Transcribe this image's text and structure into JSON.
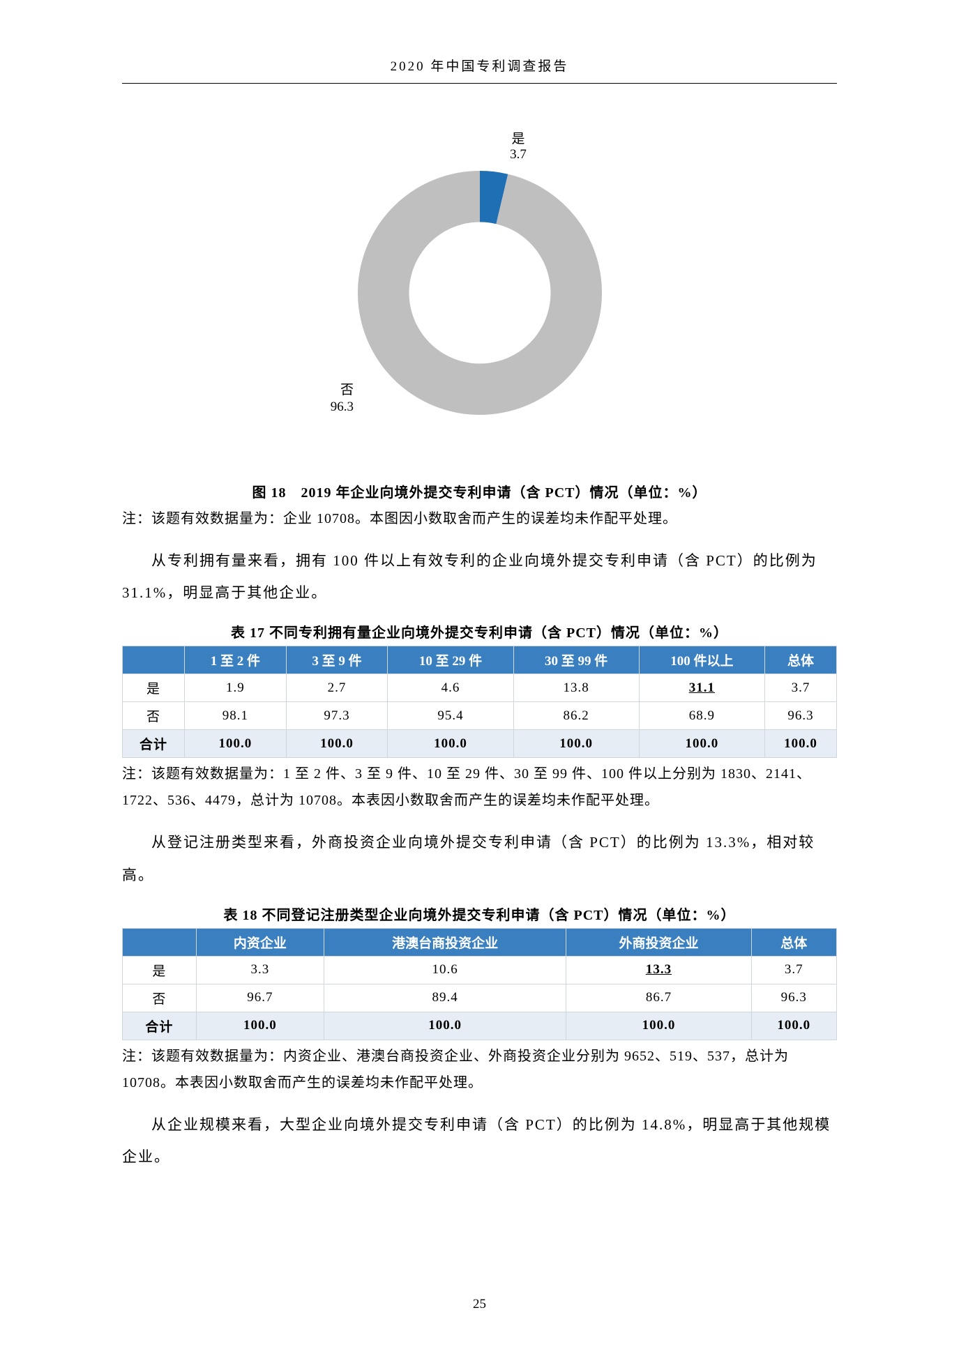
{
  "header": "2020 年中国专利调查报告",
  "page_number": "25",
  "donut": {
    "type": "donut",
    "labels": {
      "yes": "是",
      "no": "否"
    },
    "values": {
      "yes": 3.7,
      "no": 96.3
    },
    "colors": {
      "yes": "#1f6fb5",
      "no": "#bfbfbf"
    },
    "background": "#ffffff",
    "inner_radius_ratio": 0.58,
    "label_fontsize": 19,
    "yes_label_text": "是",
    "yes_value_text": "3.7",
    "no_label_text": "否",
    "no_value_text": "96.3"
  },
  "fig18_caption": "图 18　2019 年企业向境外提交专利申请（含 PCT）情况（单位：%）",
  "fig18_note": "注：该题有效数据量为：企业 10708。本图因小数取舍而产生的误差均未作配平处理。",
  "para1": "从专利拥有量来看，拥有 100 件以上有效专利的企业向境外提交专利申请（含 PCT）的比例为 31.1%，明显高于其他企业。",
  "table17": {
    "caption": "表 17 不同专利拥有量企业向境外提交专利申请（含 PCT）情况（单位：%）",
    "columns": [
      "",
      "1 至 2 件",
      "3 至 9 件",
      "10 至 29 件",
      "30 至 99 件",
      "100 件以上",
      "总体"
    ],
    "rows": [
      {
        "label": "是",
        "cells": [
          "1.9",
          "2.7",
          "4.6",
          "13.8",
          "31.1",
          "3.7"
        ],
        "underline_idx": 4
      },
      {
        "label": "否",
        "cells": [
          "98.1",
          "97.3",
          "95.4",
          "86.2",
          "68.9",
          "96.3"
        ]
      },
      {
        "label": "合计",
        "cells": [
          "100.0",
          "100.0",
          "100.0",
          "100.0",
          "100.0",
          "100.0"
        ],
        "total": true
      }
    ],
    "note": "注：该题有效数据量为：1 至 2 件、3 至 9 件、10 至 29 件、30 至 99 件、100 件以上分别为 1830、2141、1722、536、4479，总计为 10708。本表因小数取舍而产生的误差均未作配平处理。"
  },
  "para2": "从登记注册类型来看，外商投资企业向境外提交专利申请（含 PCT）的比例为 13.3%，相对较高。",
  "table18": {
    "caption": "表 18 不同登记注册类型企业向境外提交专利申请（含 PCT）情况（单位：%）",
    "columns": [
      "",
      "内资企业",
      "港澳台商投资企业",
      "外商投资企业",
      "总体"
    ],
    "rows": [
      {
        "label": "是",
        "cells": [
          "3.3",
          "10.6",
          "13.3",
          "3.7"
        ],
        "underline_idx": 2
      },
      {
        "label": "否",
        "cells": [
          "96.7",
          "89.4",
          "86.7",
          "96.3"
        ]
      },
      {
        "label": "合计",
        "cells": [
          "100.0",
          "100.0",
          "100.0",
          "100.0"
        ],
        "total": true
      }
    ],
    "note": "注：该题有效数据量为：内资企业、港澳台商投资企业、外商投资企业分别为 9652、519、537，总计为 10708。本表因小数取舍而产生的误差均未作配平处理。"
  },
  "para3": "从企业规模来看，大型企业向境外提交专利申请（含 PCT）的比例为 14.8%，明显高于其他规模企业。",
  "styling": {
    "table_header_bg": "#3a7fbf",
    "table_header_color": "#ffffff",
    "table_border_color": "#cfd6dc",
    "total_row_bg": "#e6edf4",
    "body_font": "SimSun",
    "para_font": "FangSong",
    "header_fontsize": 19,
    "caption_fontsize": 20,
    "para_fontsize": 21,
    "table_fontsize": 19
  }
}
